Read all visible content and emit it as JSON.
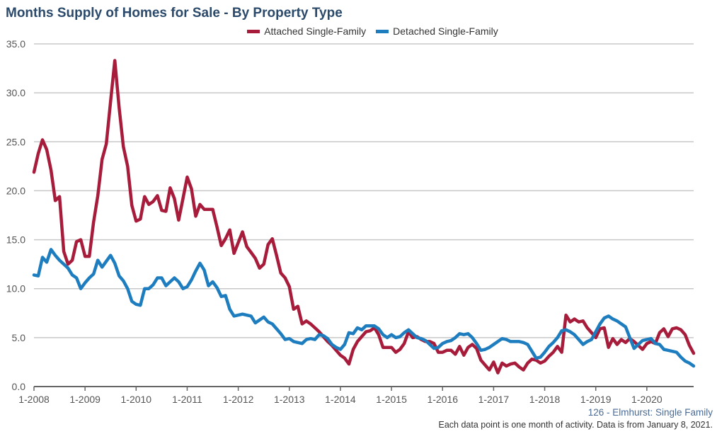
{
  "chart_data": {
    "type": "line",
    "title": "Months Supply of Homes for Sale - By Property Type",
    "xlabel": "",
    "ylabel": "",
    "ylim": [
      0,
      35
    ],
    "yticks": [
      "0.0",
      "5.0",
      "10.0",
      "15.0",
      "20.0",
      "25.0",
      "30.0",
      "35.0"
    ],
    "xticks": [
      "1-2008",
      "1-2009",
      "1-2010",
      "1-2011",
      "1-2012",
      "1-2013",
      "1-2014",
      "1-2015",
      "1-2016",
      "1-2017",
      "1-2018",
      "1-2019",
      "1-2020"
    ],
    "x_range": [
      "1-2008",
      "12-2020"
    ],
    "x_frequency": "monthly",
    "grid": true,
    "legend_position": "top-center",
    "series": [
      {
        "name": "Attached Single-Family",
        "color": "#a81c3b",
        "values": [
          21.9,
          23.8,
          25.2,
          24.2,
          22.1,
          19.0,
          19.4,
          13.8,
          12.5,
          12.9,
          14.8,
          15.0,
          13.3,
          13.3,
          16.8,
          19.5,
          23.2,
          24.8,
          29.1,
          33.3,
          28.5,
          24.5,
          22.5,
          18.5,
          16.9,
          17.1,
          19.4,
          18.6,
          18.9,
          19.5,
          18.0,
          17.9,
          20.3,
          19.2,
          17.0,
          19.2,
          21.4,
          20.2,
          17.4,
          18.6,
          18.1,
          18.1,
          18.1,
          16.3,
          14.4,
          15.1,
          16.0,
          13.6,
          14.7,
          15.8,
          14.3,
          13.7,
          13.1,
          12.1,
          12.5,
          14.5,
          15.1,
          13.4,
          11.6,
          11.1,
          10.2,
          7.9,
          8.2,
          6.4,
          6.7,
          6.4,
          6.0,
          5.6,
          5.1,
          4.6,
          4.2,
          3.7,
          3.2,
          2.9,
          2.3,
          3.8,
          4.6,
          5.1,
          5.6,
          5.7,
          6.0,
          5.3,
          4.0,
          4.0,
          4.0,
          3.5,
          3.8,
          4.4,
          5.6,
          5.0,
          5.1,
          4.8,
          4.6,
          4.6,
          4.4,
          3.5,
          3.5,
          3.7,
          3.7,
          3.3,
          4.1,
          3.2,
          4.0,
          4.3,
          3.9,
          2.7,
          2.2,
          1.7,
          2.5,
          1.4,
          2.4,
          2.1,
          2.3,
          2.4,
          2.0,
          1.7,
          2.4,
          2.8,
          2.7,
          2.4,
          2.6,
          3.1,
          3.5,
          4.1,
          3.5,
          7.3,
          6.6,
          6.9,
          6.6,
          6.7,
          6.0,
          5.5,
          5.0,
          5.9,
          6.0,
          4.0,
          4.9,
          4.3,
          4.8,
          4.5,
          4.9,
          4.6,
          4.2,
          3.8,
          4.4,
          4.6,
          4.4,
          5.5,
          5.9,
          5.1,
          5.9,
          6.0,
          5.8,
          5.3,
          4.2,
          3.4
        ]
      },
      {
        "name": "Detached Single-Family",
        "color": "#1d7dbf",
        "values": [
          11.4,
          11.3,
          13.2,
          12.7,
          14.0,
          13.4,
          12.9,
          12.5,
          12.1,
          11.4,
          11.1,
          10.0,
          10.6,
          11.1,
          11.5,
          12.9,
          12.2,
          12.8,
          13.4,
          12.6,
          11.3,
          10.8,
          10.0,
          8.7,
          8.4,
          8.3,
          10.0,
          10.0,
          10.4,
          11.1,
          11.1,
          10.3,
          10.7,
          11.1,
          10.7,
          10.0,
          10.2,
          10.9,
          11.8,
          12.6,
          11.9,
          10.3,
          10.7,
          10.1,
          9.2,
          9.3,
          7.9,
          7.2,
          7.3,
          7.4,
          7.3,
          7.2,
          6.5,
          6.8,
          7.1,
          6.6,
          6.4,
          5.9,
          5.4,
          4.8,
          4.9,
          4.6,
          4.5,
          4.4,
          4.8,
          4.9,
          4.8,
          5.3,
          5.2,
          4.9,
          4.3,
          4.0,
          3.8,
          4.3,
          5.5,
          5.4,
          6.0,
          5.8,
          6.2,
          6.2,
          6.2,
          5.9,
          5.3,
          5.0,
          5.3,
          5.0,
          5.1,
          5.5,
          5.8,
          5.4,
          5.0,
          4.9,
          4.7,
          4.3,
          3.9,
          4.0,
          4.4,
          4.6,
          4.7,
          5.0,
          5.4,
          5.3,
          5.4,
          5.0,
          4.4,
          3.7,
          3.8,
          4.0,
          4.3,
          4.6,
          4.9,
          4.8,
          4.6,
          4.6,
          4.6,
          4.5,
          4.3,
          3.6,
          2.9,
          3.0,
          3.5,
          4.1,
          4.5,
          5.0,
          5.7,
          5.8,
          5.6,
          5.3,
          4.8,
          4.3,
          4.6,
          4.8,
          5.6,
          6.4,
          7.0,
          7.2,
          6.9,
          6.7,
          6.4,
          6.1,
          5.0,
          3.9,
          4.3,
          4.7,
          4.8,
          4.9,
          4.4,
          4.3,
          3.8,
          3.7,
          3.6,
          3.5,
          3.0,
          2.6,
          2.4,
          2.1
        ]
      }
    ]
  },
  "footer": {
    "source": "126 - Elmhurst: Single Family",
    "note": "Each data point is one month of activity. Data is from January 8, 2021."
  }
}
